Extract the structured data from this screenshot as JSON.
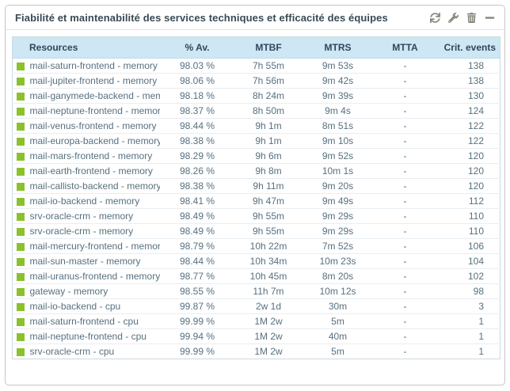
{
  "widget": {
    "title": "Fiabilité et maintenabilité des services techniques et efficacité des équipes",
    "toolbar": {
      "refresh_icon": "refresh-icon",
      "configure_icon": "wrench-icon",
      "delete_icon": "trash-icon",
      "collapse_icon": "minus-icon"
    }
  },
  "colors": {
    "status_ok": "#8bc12c",
    "table_header_bg": "#cde7f4",
    "table_header_text": "#31475a",
    "row_text": "#57707f",
    "widget_border": "#c6c6c6",
    "icon_gray": "#8d8b80"
  },
  "table": {
    "columns": {
      "resources": "Resources",
      "availability": "% Av.",
      "mtbf": "MTBF",
      "mtrs": "MTRS",
      "mtta": "MTTA",
      "crit_events": "Crit. events"
    },
    "rows": [
      {
        "status": "ok",
        "resource": "mail-saturn-frontend - memory",
        "availability": "98.03 %",
        "mtbf": "7h 55m",
        "mtrs": "9m 53s",
        "mtta": "-",
        "crit_events": "138"
      },
      {
        "status": "ok",
        "resource": "mail-jupiter-frontend - memory",
        "availability": "98.06 %",
        "mtbf": "7h 56m",
        "mtrs": "9m 42s",
        "mtta": "-",
        "crit_events": "138"
      },
      {
        "status": "ok",
        "resource": "mail-ganymede-backend - memory",
        "availability": "98.18 %",
        "mtbf": "8h 24m",
        "mtrs": "9m 39s",
        "mtta": "-",
        "crit_events": "130"
      },
      {
        "status": "ok",
        "resource": "mail-neptune-frontend - memory",
        "availability": "98.37 %",
        "mtbf": "8h 50m",
        "mtrs": "9m 4s",
        "mtta": "-",
        "crit_events": "124"
      },
      {
        "status": "ok",
        "resource": "mail-venus-frontend - memory",
        "availability": "98.44 %",
        "mtbf": "9h 1m",
        "mtrs": "8m 51s",
        "mtta": "-",
        "crit_events": "122"
      },
      {
        "status": "ok",
        "resource": "mail-europa-backend - memory",
        "availability": "98.38 %",
        "mtbf": "9h 1m",
        "mtrs": "9m 10s",
        "mtta": "-",
        "crit_events": "122"
      },
      {
        "status": "ok",
        "resource": "mail-mars-frontend - memory",
        "availability": "98.29 %",
        "mtbf": "9h 6m",
        "mtrs": "9m 52s",
        "mtta": "-",
        "crit_events": "120"
      },
      {
        "status": "ok",
        "resource": "mail-earth-frontend - memory",
        "availability": "98.26 %",
        "mtbf": "9h 8m",
        "mtrs": "10m 1s",
        "mtta": "-",
        "crit_events": "120"
      },
      {
        "status": "ok",
        "resource": "mail-callisto-backend - memory",
        "availability": "98.38 %",
        "mtbf": "9h 11m",
        "mtrs": "9m 20s",
        "mtta": "-",
        "crit_events": "120"
      },
      {
        "status": "ok",
        "resource": "mail-io-backend - memory",
        "availability": "98.41 %",
        "mtbf": "9h 47m",
        "mtrs": "9m 49s",
        "mtta": "-",
        "crit_events": "112"
      },
      {
        "status": "ok",
        "resource": "srv-oracle-crm - memory",
        "availability": "98.49 %",
        "mtbf": "9h 55m",
        "mtrs": "9m 29s",
        "mtta": "-",
        "crit_events": "110"
      },
      {
        "status": "ok",
        "resource": "srv-oracle-crm - memory",
        "availability": "98.49 %",
        "mtbf": "9h 55m",
        "mtrs": "9m 29s",
        "mtta": "-",
        "crit_events": "110"
      },
      {
        "status": "ok",
        "resource": "mail-mercury-frontend - memory",
        "availability": "98.79 %",
        "mtbf": "10h 22m",
        "mtrs": "7m 52s",
        "mtta": "-",
        "crit_events": "106"
      },
      {
        "status": "ok",
        "resource": "mail-sun-master - memory",
        "availability": "98.44 %",
        "mtbf": "10h 34m",
        "mtrs": "10m 23s",
        "mtta": "-",
        "crit_events": "104"
      },
      {
        "status": "ok",
        "resource": "mail-uranus-frontend - memory",
        "availability": "98.77 %",
        "mtbf": "10h 45m",
        "mtrs": "8m 20s",
        "mtta": "-",
        "crit_events": "102"
      },
      {
        "status": "ok",
        "resource": "gateway - memory",
        "availability": "98.55 %",
        "mtbf": "11h 7m",
        "mtrs": "10m 12s",
        "mtta": "-",
        "crit_events": "98"
      },
      {
        "status": "ok",
        "resource": "mail-io-backend - cpu",
        "availability": "99.87 %",
        "mtbf": "2w 1d",
        "mtrs": "30m",
        "mtta": "-",
        "crit_events": "3"
      },
      {
        "status": "ok",
        "resource": "mail-saturn-frontend - cpu",
        "availability": "99.99 %",
        "mtbf": "1M 2w",
        "mtrs": "5m",
        "mtta": "-",
        "crit_events": "1"
      },
      {
        "status": "ok",
        "resource": "mail-neptune-frontend - cpu",
        "availability": "99.94 %",
        "mtbf": "1M 2w",
        "mtrs": "40m",
        "mtta": "-",
        "crit_events": "1"
      },
      {
        "status": "ok",
        "resource": "srv-oracle-crm - cpu",
        "availability": "99.99 %",
        "mtbf": "1M 2w",
        "mtrs": "5m",
        "mtta": "-",
        "crit_events": "1"
      }
    ]
  }
}
